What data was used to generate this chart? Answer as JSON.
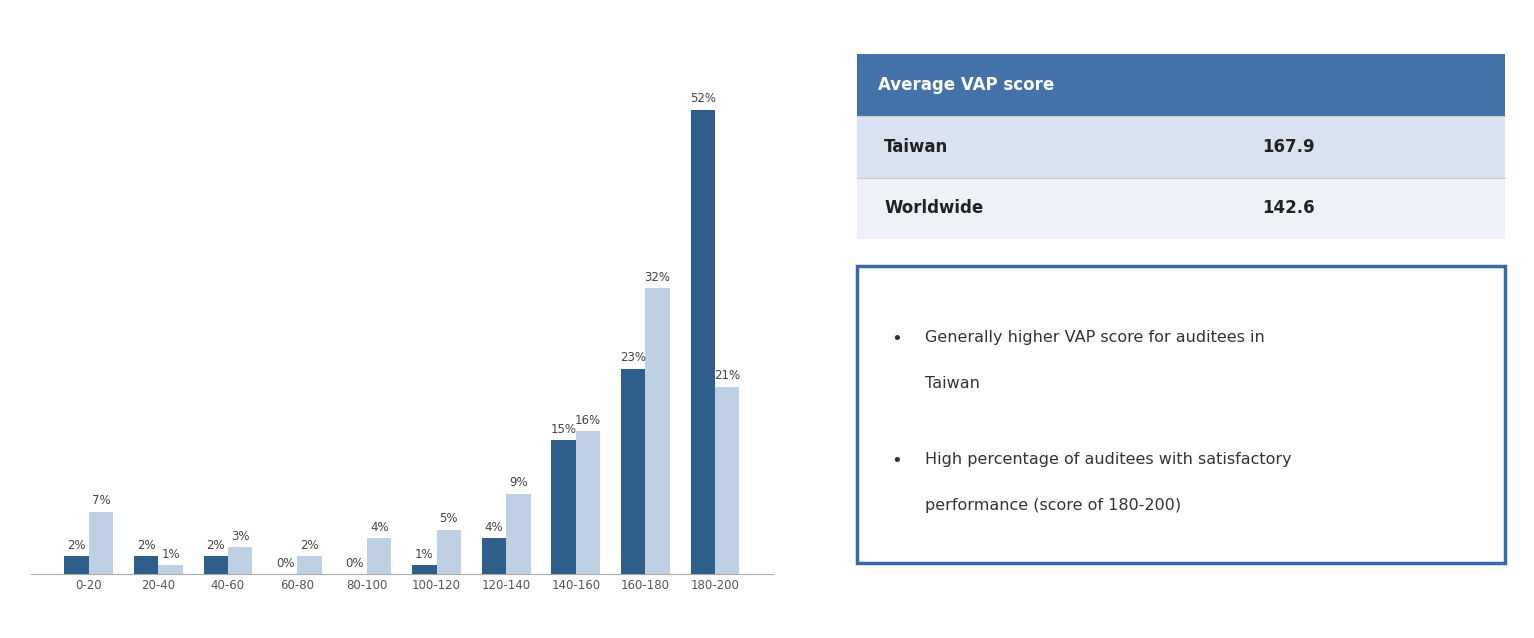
{
  "categories": [
    "0-20",
    "20-40",
    "40-60",
    "60-80",
    "80-100",
    "100-120",
    "120-140",
    "140-160",
    "160-180",
    "180-200"
  ],
  "taiwan_values": [
    2,
    2,
    2,
    0,
    0,
    1,
    4,
    15,
    23,
    52
  ],
  "worldwide_values": [
    7,
    1,
    3,
    2,
    4,
    5,
    9,
    16,
    32,
    21
  ],
  "taiwan_color": "#2E5F8A",
  "worldwide_color": "#BFCFE4",
  "taiwan_label": "Taiwan",
  "worldwide_label": "Worldwide",
  "table_title": "Average VAP score",
  "table_header_bg": "#4472A8",
  "table_header_color": "#FFFFFF",
  "table_row1_label": "Taiwan",
  "table_row1_value": "167.9",
  "table_row2_label": "Worldwide",
  "table_row2_value": "142.6",
  "table_row1_bg": "#D9E2F0",
  "table_row2_bg": "#EEF2F8",
  "bullet1_line1": "Generally higher VAP score for auditees in",
  "bullet1_line2": "Taiwan",
  "bullet2_line1": "High percentage of auditees with satisfactory",
  "bullet2_line2": "performance (score of 180-200)",
  "box_border_color": "#3A68A8",
  "bar_width": 0.35,
  "ylim": [
    0,
    60
  ],
  "label_fontsize": 8.5,
  "tick_fontsize": 8.5,
  "legend_fontsize": 10,
  "bg_color": "#FFFFFF",
  "figsize": [
    15.34,
    6.38
  ],
  "dpi": 100
}
